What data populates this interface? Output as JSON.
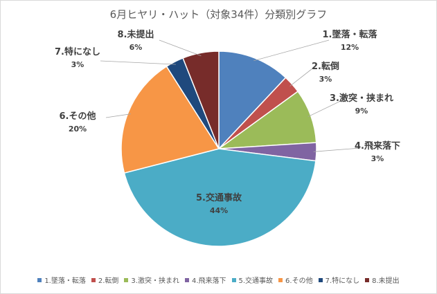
{
  "chart_data": {
    "type": "pie",
    "title": "6月ヒヤリ・ハット（対象34件）分類別グラフ",
    "categories": [
      "1.墜落・転落",
      "2.転倒",
      "3.激突・挟まれ",
      "4.飛来落下",
      "5.交通事故",
      "6.その他",
      "7.特になし",
      "8.未提出"
    ],
    "data_labels": [
      "1.墜落・転落",
      "2.転倒",
      "3.激突・挟まれ",
      "4.飛来落下",
      "5.交通事故",
      "6.その他",
      "7.特になし",
      "8.未提出"
    ],
    "values": [
      12,
      3,
      9,
      3,
      44,
      20,
      3,
      6
    ],
    "percent_labels": [
      "12%",
      "3%",
      "9%",
      "3%",
      "44%",
      "20%",
      "3%",
      "6%"
    ],
    "colors": [
      "#4f81bd",
      "#c0504d",
      "#9bbb59",
      "#8064a2",
      "#4bacc6",
      "#f79646",
      "#1f497d",
      "#772c2a"
    ],
    "legend_position": "bottom"
  }
}
